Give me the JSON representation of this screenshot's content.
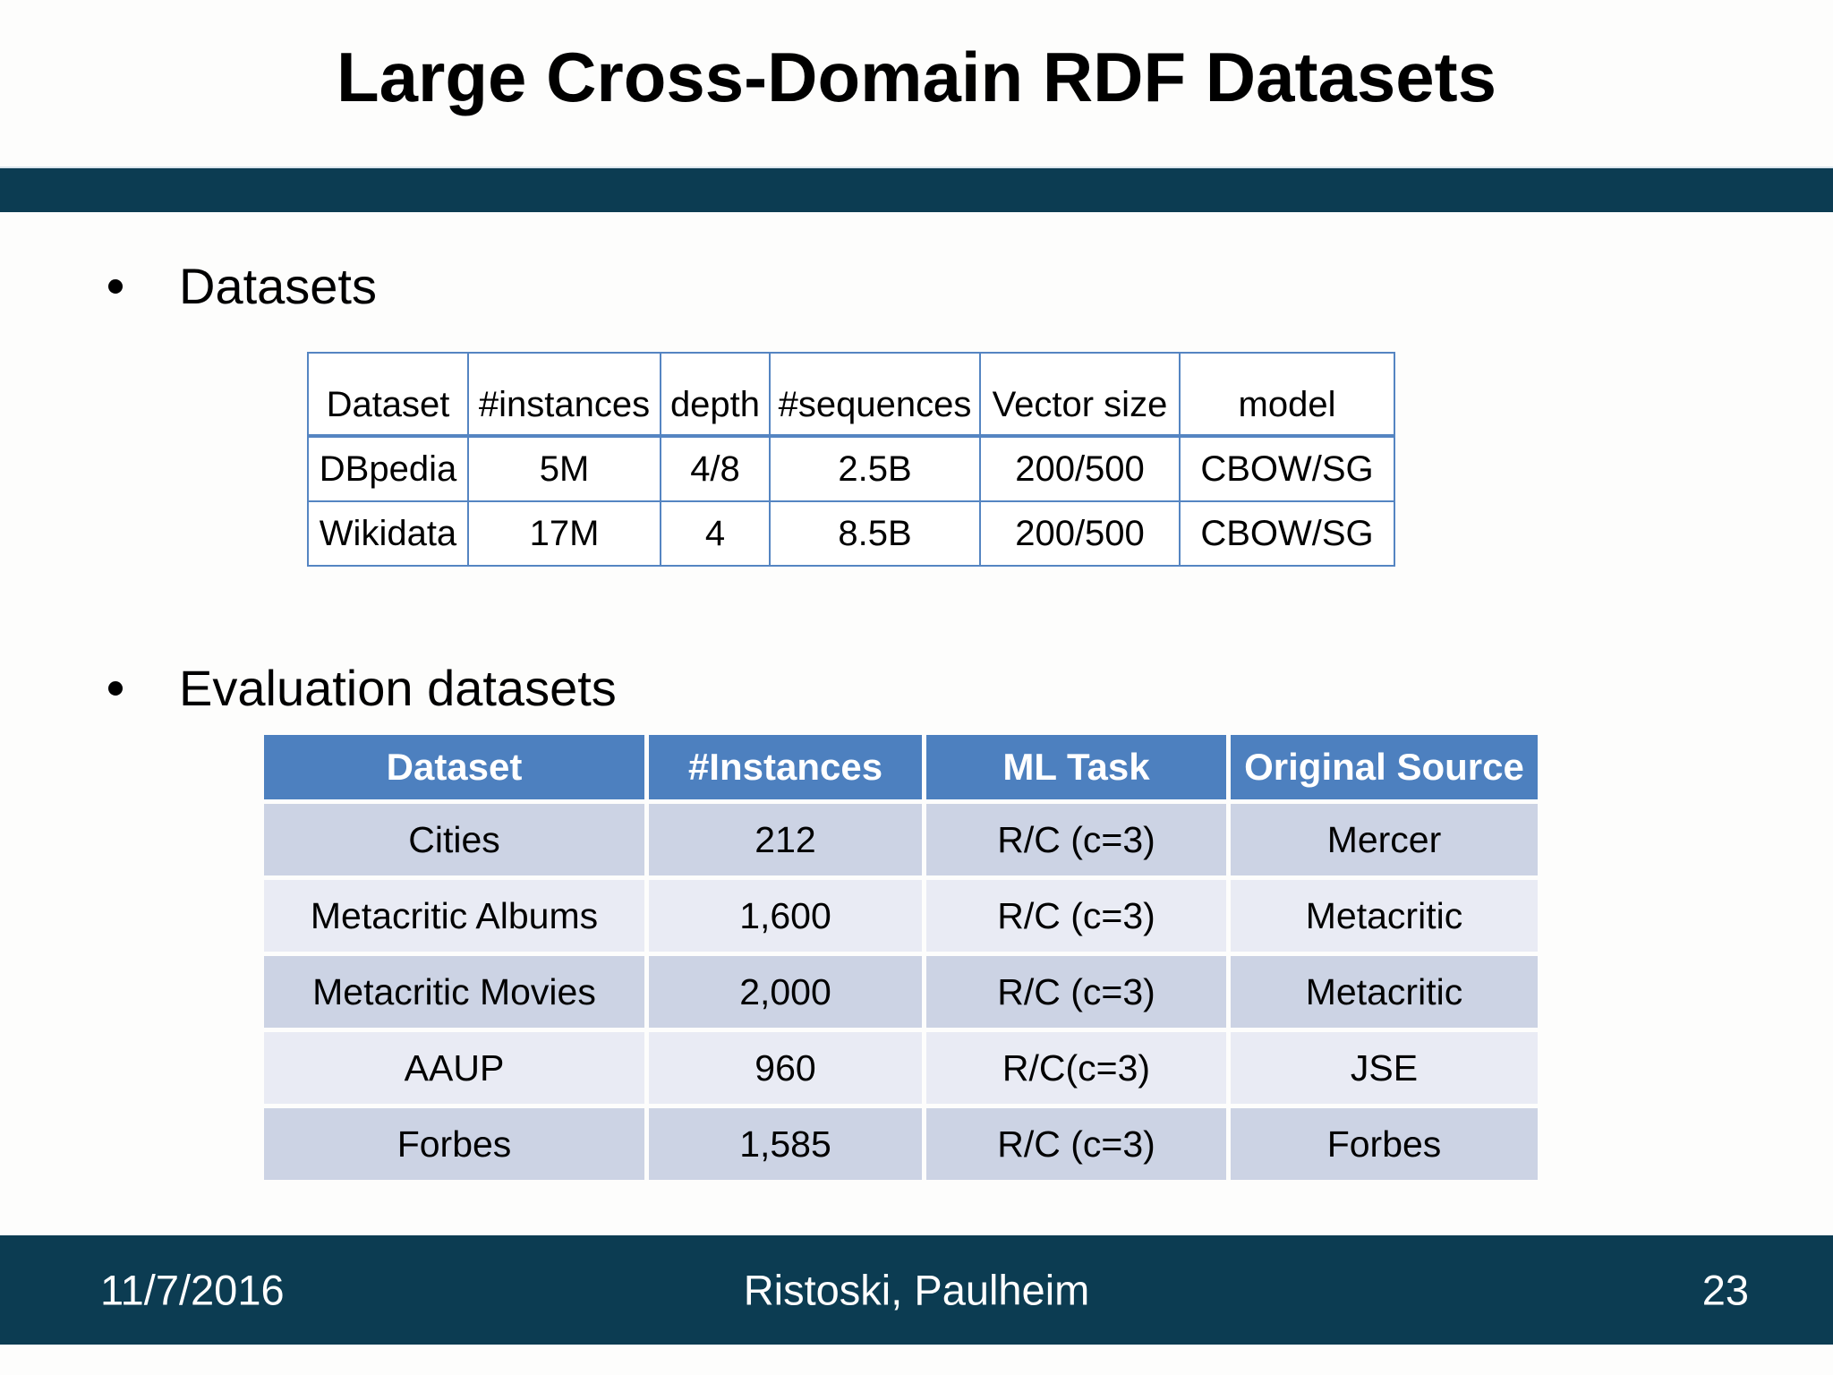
{
  "slide": {
    "title": "Large Cross-Domain RDF Datasets",
    "bullet1": "Datasets",
    "bullet2": "Evaluation datasets"
  },
  "datasets_table": {
    "headers": [
      "Dataset",
      "#instances",
      "depth",
      "#sequences",
      "Vector size",
      "model"
    ],
    "rows": [
      [
        "DBpedia",
        "5M",
        "4/8",
        "2.5B",
        "200/500",
        "CBOW/SG"
      ],
      [
        "Wikidata",
        "17M",
        "4",
        "8.5B",
        "200/500",
        "CBOW/SG"
      ]
    ]
  },
  "evaluation_table": {
    "headers": [
      "Dataset",
      "#Instances",
      "ML Task",
      "Original Source"
    ],
    "rows": [
      [
        "Cities",
        "212",
        "R/C (c=3)",
        "Mercer"
      ],
      [
        "Metacritic Albums",
        "1,600",
        "R/C (c=3)",
        "Metacritic"
      ],
      [
        "Metacritic Movies",
        "2,000",
        "R/C (c=3)",
        "Metacritic"
      ],
      [
        "AAUP",
        "960",
        "R/C(c=3)",
        "JSE"
      ],
      [
        "Forbes",
        "1,585",
        "R/C (c=3)",
        "Forbes"
      ]
    ]
  },
  "footer": {
    "date": "11/7/2016",
    "authors": "Ristoski, Paulheim",
    "page_number": "23"
  },
  "colors": {
    "divider_band": "#0c3c52",
    "table_header_blue": "#4d80bf",
    "banded_row_dark": "#ccd3e4",
    "banded_row_light": "#e9ebf4",
    "table_border_blue": "#5585c2"
  }
}
